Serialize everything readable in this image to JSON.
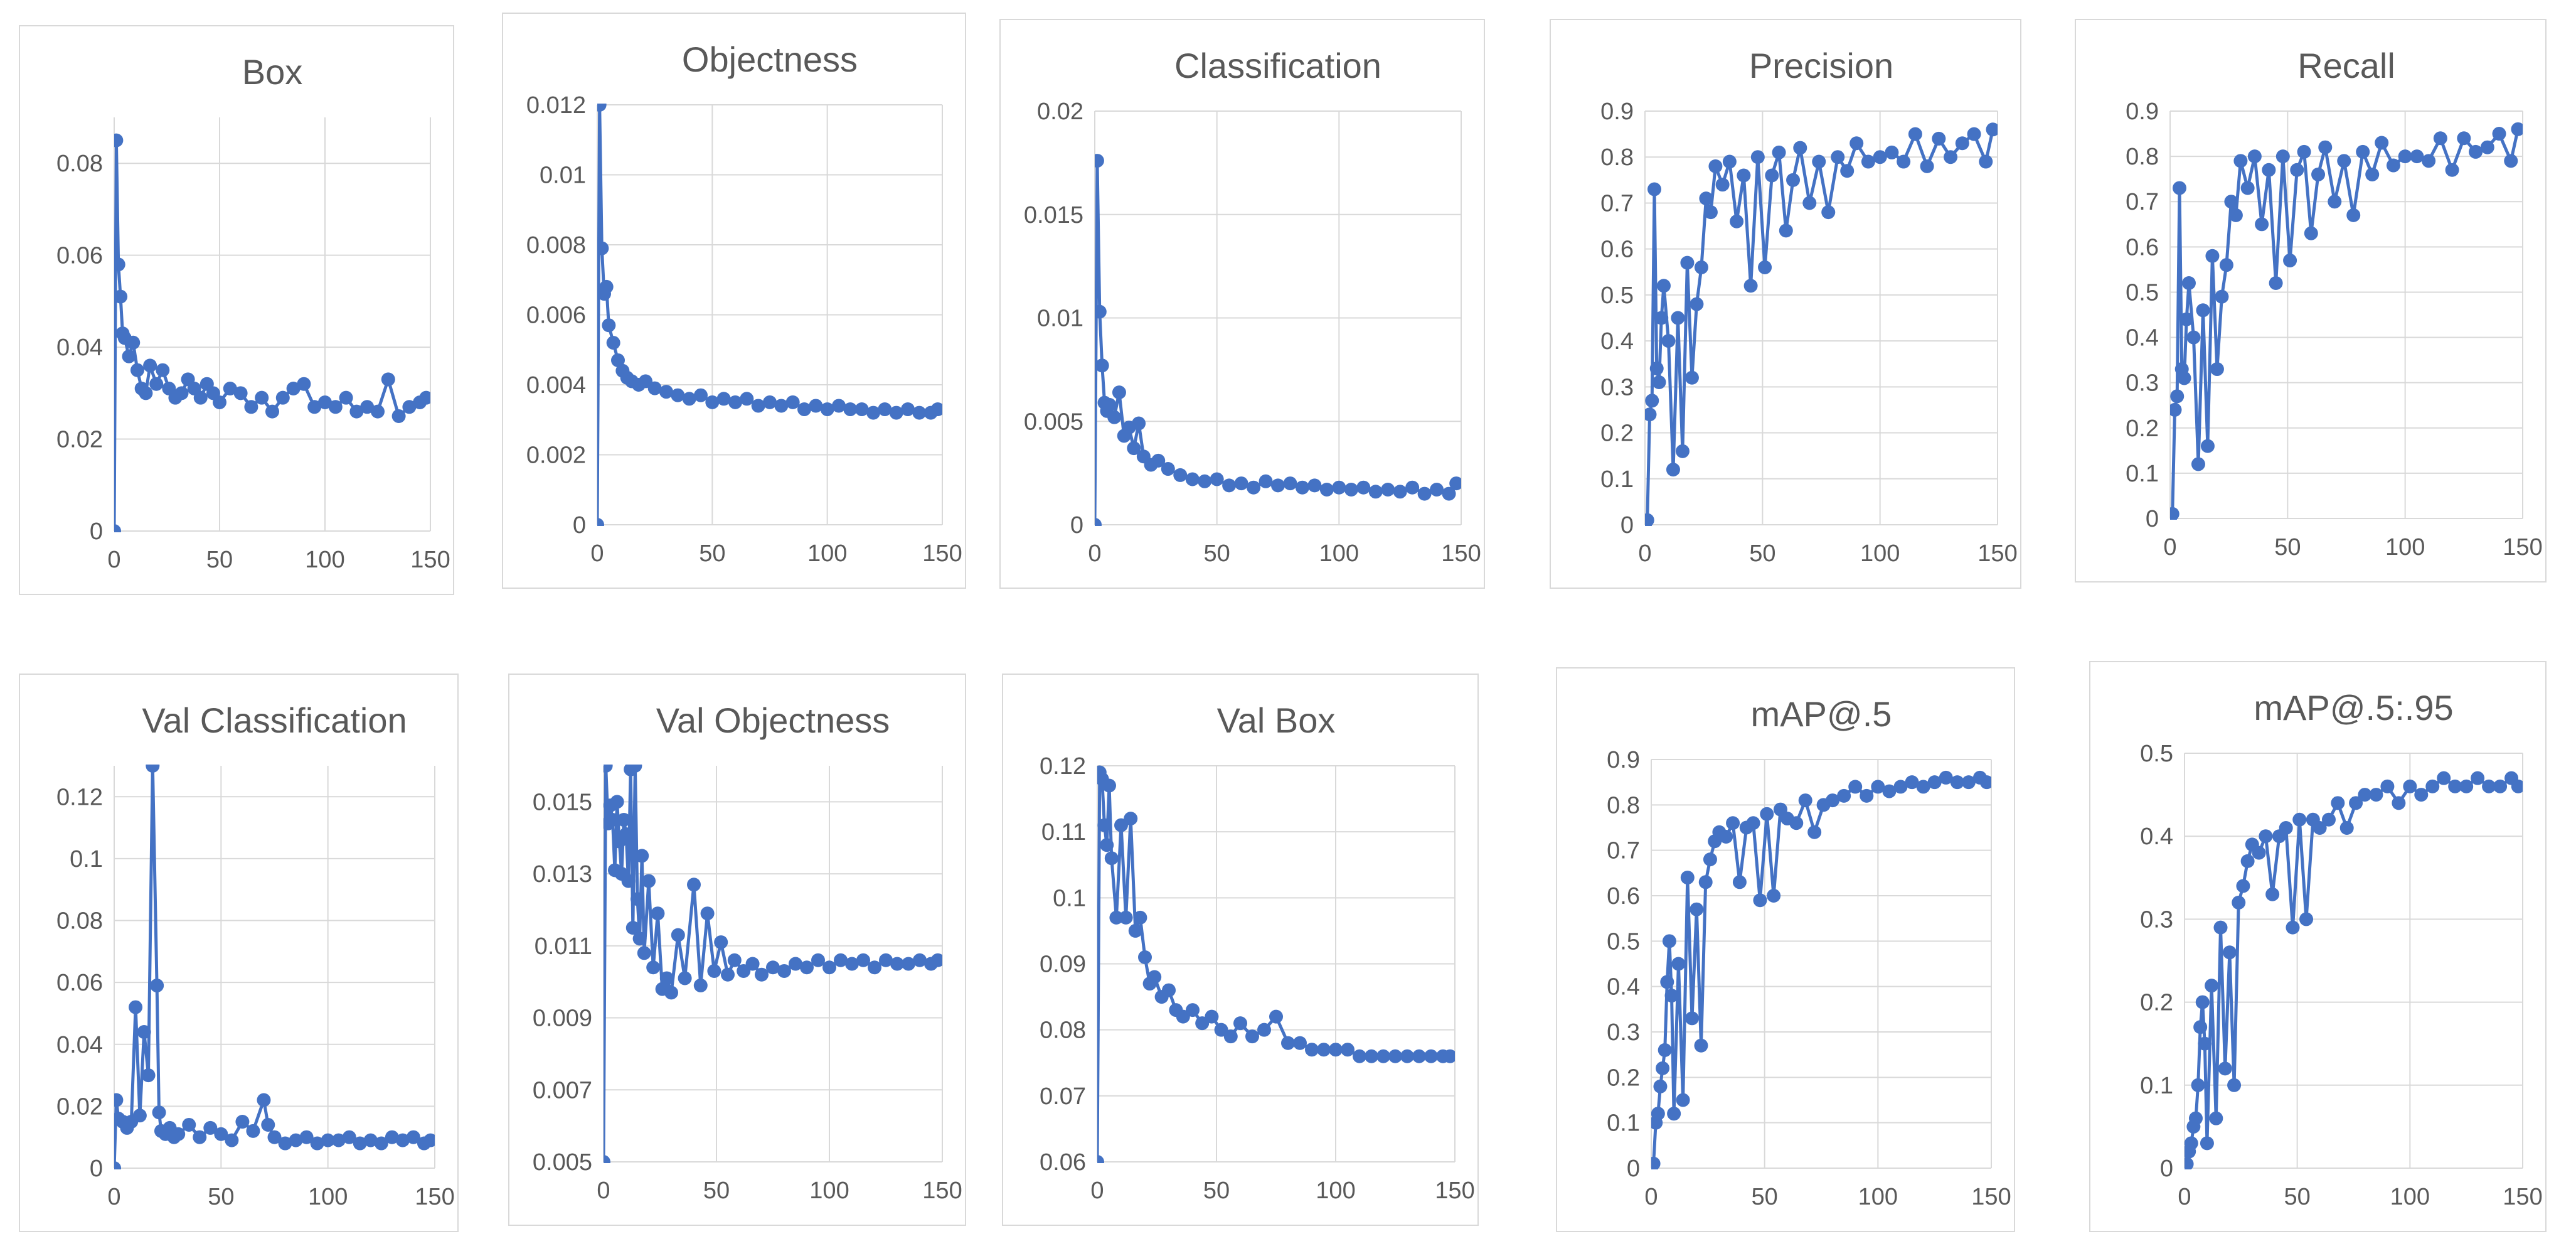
{
  "chart_data": [
    {
      "type": "line",
      "title": "Box",
      "xlabel": "",
      "ylabel": "",
      "xlim": [
        0,
        150
      ],
      "ylim": [
        0,
        0.09
      ],
      "xticks": [
        0,
        50,
        100,
        150
      ],
      "xtick_labels": [
        "0",
        "50",
        "100",
        "150"
      ],
      "yticks": [
        0,
        0.02,
        0.04,
        0.06,
        0.08
      ],
      "ytick_labels": [
        "0",
        "0.02",
        "0.04",
        "0.06",
        "0.08"
      ],
      "x": [
        0,
        1,
        2,
        3,
        4,
        5,
        7,
        9,
        11,
        13,
        15,
        17,
        20,
        23,
        26,
        29,
        32,
        35,
        38,
        41,
        44,
        47,
        50,
        55,
        60,
        65,
        70,
        75,
        80,
        85,
        90,
        95,
        100,
        105,
        110,
        115,
        120,
        125,
        130,
        135,
        140,
        145,
        148
      ],
      "values": [
        0,
        0.085,
        0.058,
        0.051,
        0.043,
        0.042,
        0.038,
        0.041,
        0.035,
        0.031,
        0.03,
        0.036,
        0.032,
        0.035,
        0.031,
        0.029,
        0.03,
        0.033,
        0.031,
        0.029,
        0.032,
        0.03,
        0.028,
        0.031,
        0.03,
        0.027,
        0.029,
        0.026,
        0.029,
        0.031,
        0.032,
        0.027,
        0.028,
        0.027,
        0.029,
        0.026,
        0.027,
        0.026,
        0.033,
        0.025,
        0.027,
        0.028,
        0.029
      ]
    },
    {
      "type": "line",
      "title": "Objectness",
      "xlabel": "",
      "ylabel": "",
      "xlim": [
        0,
        150
      ],
      "ylim": [
        0,
        0.012
      ],
      "xticks": [
        0,
        50,
        100,
        150
      ],
      "xtick_labels": [
        "0",
        "50",
        "100",
        "150"
      ],
      "yticks": [
        0,
        0.002,
        0.004,
        0.006,
        0.008,
        0.01,
        0.012
      ],
      "ytick_labels": [
        "0",
        "0.002",
        "0.004",
        "0.006",
        "0.008",
        "0.01",
        "0.012"
      ],
      "x": [
        0,
        1,
        2,
        3,
        4,
        5,
        7,
        9,
        11,
        13,
        15,
        18,
        21,
        25,
        30,
        35,
        40,
        45,
        50,
        55,
        60,
        65,
        70,
        75,
        80,
        85,
        90,
        95,
        100,
        105,
        110,
        115,
        120,
        125,
        130,
        135,
        140,
        145,
        148
      ],
      "values": [
        0,
        0.012,
        0.0079,
        0.0066,
        0.0068,
        0.0057,
        0.0052,
        0.0047,
        0.0044,
        0.0042,
        0.0041,
        0.004,
        0.0041,
        0.0039,
        0.0038,
        0.0037,
        0.0036,
        0.0037,
        0.0035,
        0.0036,
        0.0035,
        0.0036,
        0.0034,
        0.0035,
        0.0034,
        0.0035,
        0.0033,
        0.0034,
        0.0033,
        0.0034,
        0.0033,
        0.0033,
        0.0032,
        0.0033,
        0.0032,
        0.0033,
        0.0032,
        0.0032,
        0.0033
      ]
    },
    {
      "type": "line",
      "title": "Classification",
      "xlabel": "",
      "ylabel": "",
      "xlim": [
        0,
        150
      ],
      "ylim": [
        0,
        0.02
      ],
      "xticks": [
        0,
        50,
        100,
        150
      ],
      "xtick_labels": [
        "0",
        "50",
        "100",
        "150"
      ],
      "yticks": [
        0,
        0.005,
        0.01,
        0.015,
        0.02
      ],
      "ytick_labels": [
        "0",
        "0.005",
        "0.01",
        "0.015",
        "0.02"
      ],
      "x": [
        0,
        1,
        2,
        3,
        4,
        5,
        6,
        8,
        10,
        12,
        14,
        16,
        18,
        20,
        23,
        26,
        30,
        35,
        40,
        45,
        50,
        55,
        60,
        65,
        70,
        75,
        80,
        85,
        90,
        95,
        100,
        105,
        110,
        115,
        120,
        125,
        130,
        135,
        140,
        145,
        148
      ],
      "values": [
        0,
        0.0176,
        0.0103,
        0.0077,
        0.0059,
        0.0055,
        0.0058,
        0.0052,
        0.0064,
        0.0043,
        0.0047,
        0.0037,
        0.0049,
        0.0033,
        0.0029,
        0.0031,
        0.0027,
        0.0024,
        0.0022,
        0.0021,
        0.0022,
        0.0019,
        0.002,
        0.0018,
        0.0021,
        0.0019,
        0.002,
        0.0018,
        0.0019,
        0.0017,
        0.0018,
        0.0017,
        0.0018,
        0.0016,
        0.0017,
        0.0016,
        0.0018,
        0.0015,
        0.0017,
        0.0015,
        0.002
      ]
    },
    {
      "type": "line",
      "title": "Precision",
      "xlabel": "",
      "ylabel": "",
      "xlim": [
        0,
        150
      ],
      "ylim": [
        0,
        0.9
      ],
      "xticks": [
        0,
        50,
        100,
        150
      ],
      "xtick_labels": [
        "0",
        "50",
        "100",
        "150"
      ],
      "yticks": [
        0,
        0.1,
        0.2,
        0.3,
        0.4,
        0.5,
        0.6,
        0.7,
        0.8,
        0.9
      ],
      "ytick_labels": [
        "0",
        "0.1",
        "0.2",
        "0.3",
        "0.4",
        "0.5",
        "0.6",
        "0.7",
        "0.8",
        "0.9"
      ],
      "x": [
        0,
        1,
        2,
        3,
        4,
        5,
        6,
        7,
        8,
        10,
        12,
        14,
        16,
        18,
        20,
        22,
        24,
        26,
        28,
        30,
        33,
        36,
        39,
        42,
        45,
        48,
        51,
        54,
        57,
        60,
        63,
        66,
        70,
        74,
        78,
        82,
        86,
        90,
        95,
        100,
        105,
        110,
        115,
        120,
        125,
        130,
        135,
        140,
        145,
        148
      ],
      "values": [
        0,
        0.01,
        0.24,
        0.27,
        0.73,
        0.34,
        0.31,
        0.45,
        0.52,
        0.4,
        0.12,
        0.45,
        0.16,
        0.57,
        0.32,
        0.48,
        0.56,
        0.71,
        0.68,
        0.78,
        0.74,
        0.79,
        0.66,
        0.76,
        0.52,
        0.8,
        0.56,
        0.76,
        0.81,
        0.64,
        0.75,
        0.82,
        0.7,
        0.79,
        0.68,
        0.8,
        0.77,
        0.83,
        0.79,
        0.8,
        0.81,
        0.79,
        0.85,
        0.78,
        0.84,
        0.8,
        0.83,
        0.85,
        0.79,
        0.86
      ]
    },
    {
      "type": "line",
      "title": "Recall",
      "xlabel": "",
      "ylabel": "",
      "xlim": [
        0,
        150
      ],
      "ylim": [
        0,
        0.9
      ],
      "xticks": [
        0,
        50,
        100,
        150
      ],
      "xtick_labels": [
        "0",
        "50",
        "100",
        "150"
      ],
      "yticks": [
        0,
        0.1,
        0.2,
        0.3,
        0.4,
        0.5,
        0.6,
        0.7,
        0.8,
        0.9
      ],
      "ytick_labels": [
        "0",
        "0.1",
        "0.2",
        "0.3",
        "0.4",
        "0.5",
        "0.6",
        "0.7",
        "0.8",
        "0.9"
      ],
      "x": [
        0,
        1,
        2,
        3,
        4,
        5,
        6,
        7,
        8,
        10,
        12,
        14,
        16,
        18,
        20,
        22,
        24,
        26,
        28,
        30,
        33,
        36,
        39,
        42,
        45,
        48,
        51,
        54,
        57,
        60,
        63,
        66,
        70,
        74,
        78,
        82,
        86,
        90,
        95,
        100,
        105,
        110,
        115,
        120,
        125,
        130,
        135,
        140,
        145,
        148
      ],
      "values": [
        0,
        0.01,
        0.24,
        0.27,
        0.73,
        0.33,
        0.31,
        0.44,
        0.52,
        0.4,
        0.12,
        0.46,
        0.16,
        0.58,
        0.33,
        0.49,
        0.56,
        0.7,
        0.67,
        0.79,
        0.73,
        0.8,
        0.65,
        0.77,
        0.52,
        0.8,
        0.57,
        0.77,
        0.81,
        0.63,
        0.76,
        0.82,
        0.7,
        0.79,
        0.67,
        0.81,
        0.76,
        0.83,
        0.78,
        0.8,
        0.8,
        0.79,
        0.84,
        0.77,
        0.84,
        0.81,
        0.82,
        0.85,
        0.79,
        0.86
      ]
    },
    {
      "type": "line",
      "title": "Val Classification",
      "xlabel": "",
      "ylabel": "",
      "xlim": [
        0,
        150
      ],
      "ylim": [
        0,
        0.13
      ],
      "xticks": [
        0,
        50,
        100,
        150
      ],
      "xtick_labels": [
        "0",
        "50",
        "100",
        "150"
      ],
      "yticks": [
        0,
        0.02,
        0.04,
        0.06,
        0.08,
        0.1,
        0.12
      ],
      "ytick_labels": [
        "0",
        "0.02",
        "0.04",
        "0.06",
        "0.08",
        "0.1",
        "0.12"
      ],
      "x": [
        0,
        1,
        2,
        4,
        6,
        8,
        10,
        12,
        14,
        16,
        18,
        20,
        21,
        22,
        24,
        26,
        28,
        30,
        35,
        40,
        45,
        50,
        55,
        60,
        65,
        70,
        72,
        75,
        80,
        85,
        90,
        95,
        100,
        105,
        110,
        115,
        120,
        125,
        130,
        135,
        140,
        145,
        148
      ],
      "values": [
        0,
        0.022,
        0.016,
        0.015,
        0.013,
        0.015,
        0.052,
        0.017,
        0.044,
        0.03,
        0.13,
        0.059,
        0.018,
        0.012,
        0.011,
        0.013,
        0.01,
        0.011,
        0.014,
        0.01,
        0.013,
        0.011,
        0.009,
        0.015,
        0.012,
        0.022,
        0.014,
        0.01,
        0.008,
        0.009,
        0.01,
        0.008,
        0.009,
        0.009,
        0.01,
        0.008,
        0.009,
        0.008,
        0.01,
        0.009,
        0.01,
        0.008,
        0.009
      ]
    },
    {
      "type": "line",
      "title": "Val Objectness",
      "xlabel": "",
      "ylabel": "",
      "xlim": [
        0,
        150
      ],
      "ylim": [
        0.005,
        0.016
      ],
      "xticks": [
        0,
        50,
        100,
        150
      ],
      "xtick_labels": [
        "0",
        "50",
        "100",
        "150"
      ],
      "yticks": [
        0.005,
        0.007,
        0.009,
        0.011,
        0.013,
        0.015
      ],
      "ytick_labels": [
        "0.005",
        "0.007",
        "0.009",
        "0.011",
        "0.013",
        "0.015"
      ],
      "x": [
        0,
        1,
        2,
        3,
        4,
        5,
        6,
        7,
        8,
        9,
        10,
        11,
        12,
        13,
        14,
        15,
        16,
        17,
        18,
        20,
        22,
        24,
        26,
        28,
        30,
        33,
        36,
        40,
        43,
        46,
        49,
        52,
        55,
        58,
        62,
        66,
        70,
        75,
        80,
        85,
        90,
        95,
        100,
        105,
        110,
        115,
        120,
        125,
        130,
        135,
        140,
        145,
        148
      ],
      "values": [
        0.005,
        0.016,
        0.0144,
        0.0149,
        0.0145,
        0.0131,
        0.015,
        0.0139,
        0.013,
        0.0145,
        0.0141,
        0.0128,
        0.0159,
        0.0115,
        0.016,
        0.0123,
        0.0112,
        0.0135,
        0.0108,
        0.0128,
        0.0104,
        0.0119,
        0.0098,
        0.0101,
        0.0097,
        0.0113,
        0.0101,
        0.0127,
        0.0099,
        0.0119,
        0.0103,
        0.0111,
        0.0102,
        0.0106,
        0.0103,
        0.0105,
        0.0102,
        0.0104,
        0.0103,
        0.0105,
        0.0104,
        0.0106,
        0.0104,
        0.0106,
        0.0105,
        0.0106,
        0.0104,
        0.0106,
        0.0105,
        0.0105,
        0.0106,
        0.0105,
        0.0106
      ]
    },
    {
      "type": "line",
      "title": "Val Box",
      "xlabel": "",
      "ylabel": "",
      "xlim": [
        0,
        150
      ],
      "ylim": [
        0.06,
        0.12
      ],
      "xticks": [
        0,
        50,
        100,
        150
      ],
      "xtick_labels": [
        "0",
        "50",
        "100",
        "150"
      ],
      "yticks": [
        0.06,
        0.07,
        0.08,
        0.09,
        0.1,
        0.11,
        0.12
      ],
      "ytick_labels": [
        "0.06",
        "0.07",
        "0.08",
        "0.09",
        "0.1",
        "0.11",
        "0.12"
      ],
      "x": [
        0,
        1,
        2,
        3,
        4,
        5,
        6,
        8,
        10,
        12,
        14,
        16,
        18,
        20,
        22,
        24,
        27,
        30,
        33,
        36,
        40,
        44,
        48,
        52,
        56,
        60,
        65,
        70,
        75,
        80,
        85,
        90,
        95,
        100,
        105,
        110,
        115,
        120,
        125,
        130,
        135,
        140,
        145,
        148
      ],
      "values": [
        0.06,
        0.119,
        0.118,
        0.111,
        0.108,
        0.117,
        0.106,
        0.097,
        0.111,
        0.097,
        0.112,
        0.095,
        0.097,
        0.091,
        0.087,
        0.088,
        0.085,
        0.086,
        0.083,
        0.082,
        0.083,
        0.081,
        0.082,
        0.08,
        0.079,
        0.081,
        0.079,
        0.08,
        0.082,
        0.078,
        0.078,
        0.077,
        0.077,
        0.077,
        0.077,
        0.076,
        0.076,
        0.076,
        0.076,
        0.076,
        0.076,
        0.076,
        0.076,
        0.076
      ]
    },
    {
      "type": "line",
      "title": "mAP@.5",
      "xlabel": "",
      "ylabel": "",
      "xlim": [
        0,
        150
      ],
      "ylim": [
        0,
        0.9
      ],
      "xticks": [
        0,
        50,
        100,
        150
      ],
      "xtick_labels": [
        "0",
        "50",
        "100",
        "150"
      ],
      "yticks": [
        0,
        0.1,
        0.2,
        0.3,
        0.4,
        0.5,
        0.6,
        0.7,
        0.8,
        0.9
      ],
      "ytick_labels": [
        "0",
        "0.1",
        "0.2",
        "0.3",
        "0.4",
        "0.5",
        "0.6",
        "0.7",
        "0.8",
        "0.9"
      ],
      "x": [
        0,
        1,
        2,
        3,
        4,
        5,
        6,
        7,
        8,
        9,
        10,
        12,
        14,
        16,
        18,
        20,
        22,
        24,
        26,
        28,
        30,
        33,
        36,
        39,
        42,
        45,
        48,
        51,
        54,
        57,
        60,
        64,
        68,
        72,
        76,
        80,
        85,
        90,
        95,
        100,
        105,
        110,
        115,
        120,
        125,
        130,
        135,
        140,
        145,
        148
      ],
      "values": [
        0,
        0.01,
        0.1,
        0.12,
        0.18,
        0.22,
        0.26,
        0.41,
        0.5,
        0.38,
        0.12,
        0.45,
        0.15,
        0.64,
        0.33,
        0.57,
        0.27,
        0.63,
        0.68,
        0.72,
        0.74,
        0.73,
        0.76,
        0.63,
        0.75,
        0.76,
        0.59,
        0.78,
        0.6,
        0.79,
        0.77,
        0.76,
        0.81,
        0.74,
        0.8,
        0.81,
        0.82,
        0.84,
        0.82,
        0.84,
        0.83,
        0.84,
        0.85,
        0.84,
        0.85,
        0.86,
        0.85,
        0.85,
        0.86,
        0.85
      ]
    },
    {
      "type": "line",
      "title": "mAP@.5:.95",
      "xlabel": "",
      "ylabel": "",
      "xlim": [
        0,
        150
      ],
      "ylim": [
        0,
        0.5
      ],
      "xticks": [
        0,
        50,
        100,
        150
      ],
      "xtick_labels": [
        "0",
        "50",
        "100",
        "150"
      ],
      "yticks": [
        0,
        0.1,
        0.2,
        0.3,
        0.4,
        0.5
      ],
      "ytick_labels": [
        "0",
        "0.1",
        "0.2",
        "0.3",
        "0.4",
        "0.5"
      ],
      "x": [
        0,
        1,
        2,
        3,
        4,
        5,
        6,
        7,
        8,
        9,
        10,
        12,
        14,
        16,
        18,
        20,
        22,
        24,
        26,
        28,
        30,
        33,
        36,
        39,
        42,
        45,
        48,
        51,
        54,
        57,
        60,
        64,
        68,
        72,
        76,
        80,
        85,
        90,
        95,
        100,
        105,
        110,
        115,
        120,
        125,
        130,
        135,
        140,
        145,
        148
      ],
      "values": [
        0,
        0.005,
        0.02,
        0.03,
        0.05,
        0.06,
        0.1,
        0.17,
        0.2,
        0.15,
        0.03,
        0.22,
        0.06,
        0.29,
        0.12,
        0.26,
        0.1,
        0.32,
        0.34,
        0.37,
        0.39,
        0.38,
        0.4,
        0.33,
        0.4,
        0.41,
        0.29,
        0.42,
        0.3,
        0.42,
        0.41,
        0.42,
        0.44,
        0.41,
        0.44,
        0.45,
        0.45,
        0.46,
        0.44,
        0.46,
        0.45,
        0.46,
        0.47,
        0.46,
        0.46,
        0.47,
        0.46,
        0.46,
        0.47,
        0.46
      ]
    }
  ]
}
